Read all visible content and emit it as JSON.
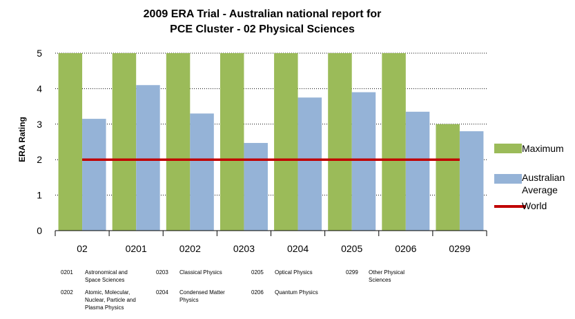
{
  "chart_data": {
    "type": "bar",
    "title": [
      "2009 ERA Trial - Australian national report for",
      "PCE Cluster - 02 Physical Sciences"
    ],
    "ylabel": "ERA Rating",
    "xlabel": "",
    "ylim": [
      0,
      5
    ],
    "yticks": [
      0,
      1,
      2,
      3,
      4,
      5
    ],
    "categories": [
      "02",
      "0201",
      "0202",
      "0203",
      "0204",
      "0205",
      "0206",
      "0299"
    ],
    "series": [
      {
        "name": "Maximum",
        "color": "#9bbb59",
        "values": [
          5,
          5,
          5,
          5,
          5,
          5,
          5,
          3
        ]
      },
      {
        "name": "Australian Average",
        "color": "#95b3d7",
        "values": [
          3.15,
          4.1,
          3.3,
          2.47,
          3.75,
          3.9,
          3.35,
          2.8
        ]
      }
    ],
    "reference_line": {
      "name": "World",
      "color": "#c00000",
      "value": 2
    },
    "grid": "horizontal-dotted",
    "legend_position": "right"
  },
  "legend": {
    "maximum": "Maximum",
    "average": "Australian Average",
    "world": "World"
  },
  "notes": [
    {
      "code": "0201",
      "text": "Astronomical and Space Sciences"
    },
    {
      "code": "0202",
      "text": "Atomic, Molecular, Nuclear, Particle and Plasma Physics"
    },
    {
      "code": "0203",
      "text": "Classical Physics"
    },
    {
      "code": "0204",
      "text": "Condensed Matter Physics"
    },
    {
      "code": "0205",
      "text": "Optical Physics"
    },
    {
      "code": "0206",
      "text": "Quantum Physics"
    },
    {
      "code": "0299",
      "text": "Other Physical Sciences"
    }
  ]
}
